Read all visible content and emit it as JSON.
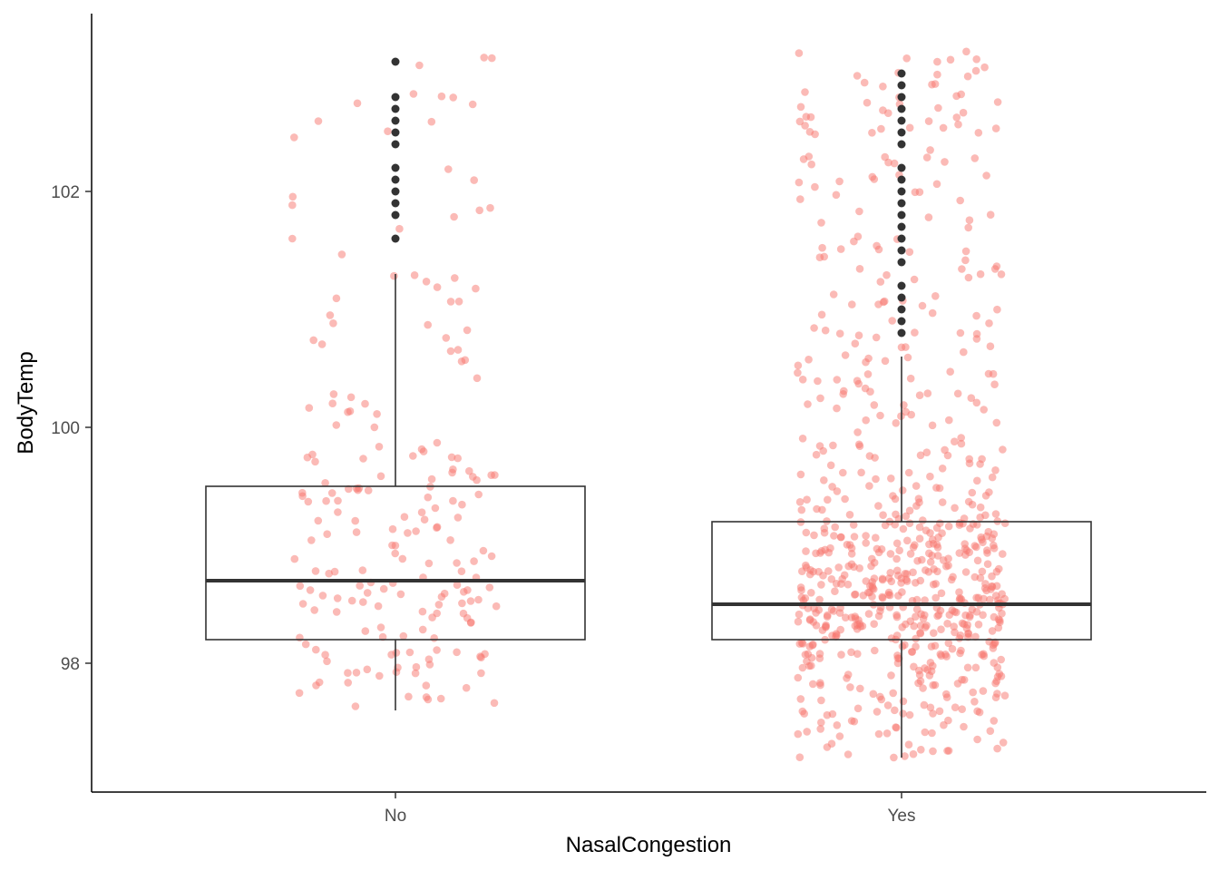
{
  "chart_data": {
    "type": "box",
    "xlabel": "NasalCongestion",
    "ylabel": "BodyTemp",
    "categories": [
      "No",
      "Yes"
    ],
    "ylim": [
      96.9,
      103.5
    ],
    "yticks": [
      98,
      100,
      102
    ],
    "grid": false,
    "boxes": [
      {
        "category": "No",
        "q1": 98.2,
        "median": 98.7,
        "q3": 99.5,
        "whisker_low": 97.6,
        "whisker_high": 101.3,
        "outliers": [
          101.6,
          101.8,
          101.9,
          102.0,
          102.1,
          102.2,
          102.4,
          102.5,
          102.6,
          102.7,
          102.8,
          103.1
        ]
      },
      {
        "category": "Yes",
        "q1": 98.2,
        "median": 98.5,
        "q3": 99.2,
        "whisker_low": 97.2,
        "whisker_high": 100.6,
        "outliers": [
          100.8,
          100.9,
          101.0,
          101.1,
          101.2,
          101.4,
          101.5,
          101.6,
          101.7,
          101.8,
          101.9,
          102.0,
          102.1,
          102.2,
          102.4,
          102.5,
          102.6,
          102.7,
          102.8,
          102.9,
          103.0
        ]
      }
    ],
    "jitter_points": {
      "color": "#f8766d",
      "opacity": 0.5,
      "count_no": 200,
      "count_yes": 700
    }
  }
}
